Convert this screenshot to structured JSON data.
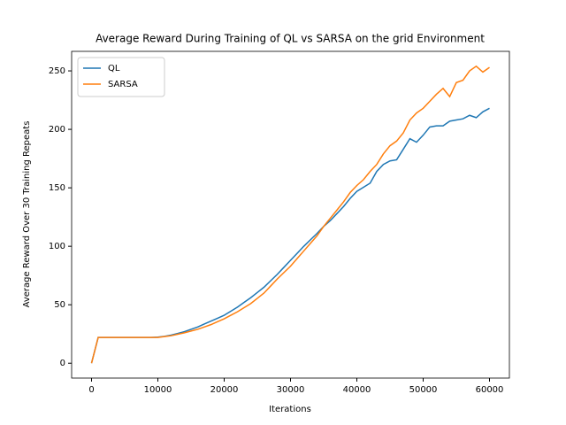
{
  "chart_data": {
    "type": "line",
    "title": "Average Reward During Training of QL vs SARSA on the grid Environment",
    "xlabel": "Iterations",
    "ylabel": "Average Reward Over 30 Training Repeats",
    "x": [
      0,
      1000,
      2000,
      3000,
      4000,
      5000,
      6000,
      7000,
      8000,
      9000,
      10000,
      11000,
      12000,
      13000,
      14000,
      15000,
      16000,
      17000,
      18000,
      19000,
      20000,
      21000,
      22000,
      23000,
      24000,
      25000,
      26000,
      27000,
      28000,
      29000,
      30000,
      31000,
      32000,
      33000,
      34000,
      35000,
      36000,
      37000,
      38000,
      39000,
      40000,
      41000,
      42000,
      43000,
      44000,
      45000,
      46000,
      47000,
      48000,
      49000,
      50000,
      51000,
      52000,
      53000,
      54000,
      55000,
      56000,
      57000,
      58000,
      59000,
      60000
    ],
    "series": [
      {
        "name": "QL",
        "color": "#1f77b4",
        "values": [
          0,
          22,
          22,
          22,
          22,
          22,
          22,
          22,
          22,
          22,
          22.3,
          23,
          24,
          25.5,
          27,
          29,
          31,
          33.5,
          36,
          38.5,
          41,
          44.5,
          48,
          52,
          56,
          60.5,
          65,
          70.5,
          76,
          82,
          88,
          94,
          100,
          105.5,
          111,
          117,
          122,
          128,
          134,
          141,
          147,
          150.5,
          154,
          164,
          170,
          173,
          174,
          183,
          192,
          189,
          195,
          202,
          203,
          203,
          207,
          208,
          209,
          212,
          210,
          215,
          218
        ]
      },
      {
        "name": "SARSA",
        "color": "#ff7f0e",
        "values": [
          0,
          22,
          22,
          22,
          22,
          22,
          22,
          22,
          22,
          22,
          22,
          22.8,
          23.5,
          24.8,
          26,
          27.5,
          29,
          31,
          33,
          35.5,
          38,
          41,
          44,
          47.5,
          51,
          55.5,
          60,
          66,
          72,
          77.5,
          83,
          89.5,
          96,
          102.5,
          109,
          117,
          124,
          131,
          138,
          146,
          152,
          157,
          164,
          170,
          179,
          186,
          190,
          197,
          208,
          214,
          218,
          224,
          230,
          235,
          228,
          240,
          242,
          250,
          254,
          249,
          253
        ]
      }
    ],
    "xlim": [
      -3000,
      63000
    ],
    "xticks": [
      0,
      10000,
      20000,
      30000,
      40000,
      50000,
      60000
    ],
    "ylim": [
      -12.7,
      266.7
    ],
    "yticks": [
      0,
      50,
      100,
      150,
      200,
      250
    ],
    "legend": "upper left",
    "grid": false
  }
}
